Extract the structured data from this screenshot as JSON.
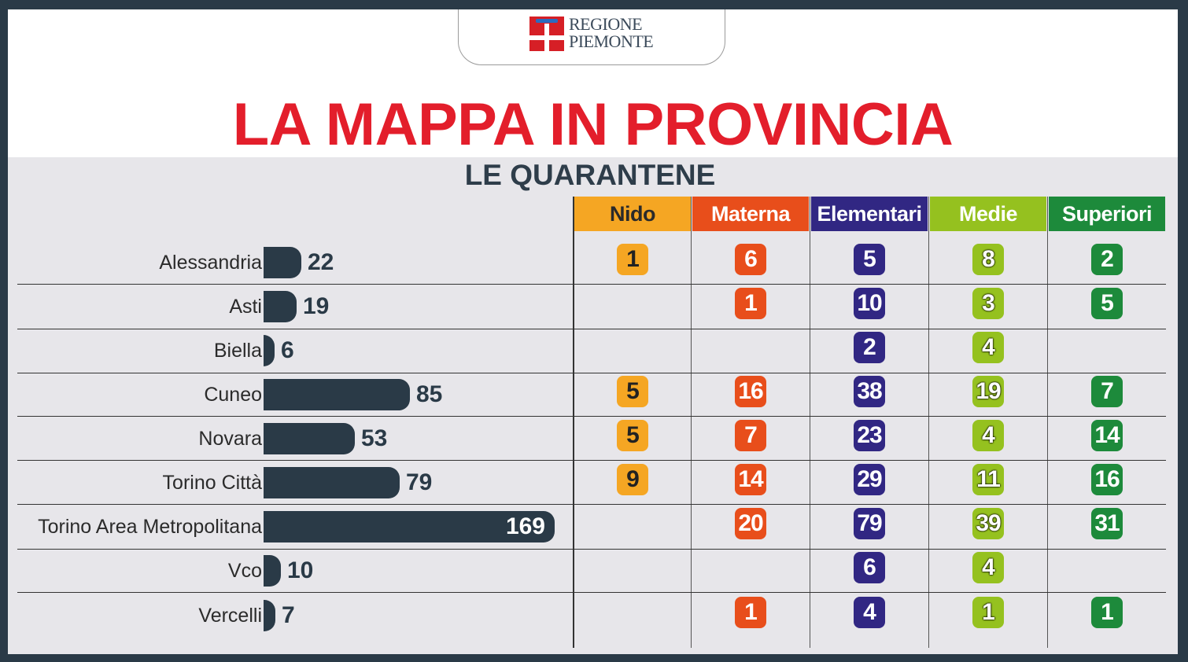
{
  "logo": {
    "line1": "REGIONE",
    "line2": "PIEMONTE"
  },
  "title": "LA MAPPA IN PROVINCIA",
  "subtitle": "LE QUARANTENE",
  "colors": {
    "bar": "#2a3a47",
    "title": "#e31e2b",
    "nido": "#f5a623",
    "materna": "#e84e1b",
    "elementari": "#312783",
    "medie": "#95c11f",
    "superiori": "#1d8a3b"
  },
  "chart_data": {
    "type": "table",
    "title": "LA MAPPA IN PROVINCIA",
    "subtitle": "LE QUARANTENE",
    "columns": [
      "Nido",
      "Materna",
      "Elementari",
      "Medie",
      "Superiori"
    ],
    "rows": [
      {
        "province": "Alessandria",
        "total": 22,
        "cells": [
          1,
          6,
          5,
          8,
          2
        ]
      },
      {
        "province": "Asti",
        "total": 19,
        "cells": [
          null,
          1,
          10,
          3,
          5
        ]
      },
      {
        "province": "Biella",
        "total": 6,
        "cells": [
          null,
          null,
          2,
          4,
          null
        ]
      },
      {
        "province": "Cuneo",
        "total": 85,
        "cells": [
          5,
          16,
          38,
          19,
          7
        ]
      },
      {
        "province": "Novara",
        "total": 53,
        "cells": [
          5,
          7,
          23,
          4,
          14
        ]
      },
      {
        "province": "Torino Città",
        "total": 79,
        "cells": [
          9,
          14,
          29,
          11,
          16
        ]
      },
      {
        "province": "Torino Area Metropolitana",
        "total": 169,
        "cells": [
          null,
          20,
          79,
          39,
          31
        ]
      },
      {
        "province": "Vco",
        "total": 10,
        "cells": [
          null,
          null,
          6,
          4,
          null
        ]
      },
      {
        "province": "Vercelli",
        "total": 7,
        "cells": [
          null,
          1,
          4,
          1,
          1
        ]
      }
    ]
  }
}
